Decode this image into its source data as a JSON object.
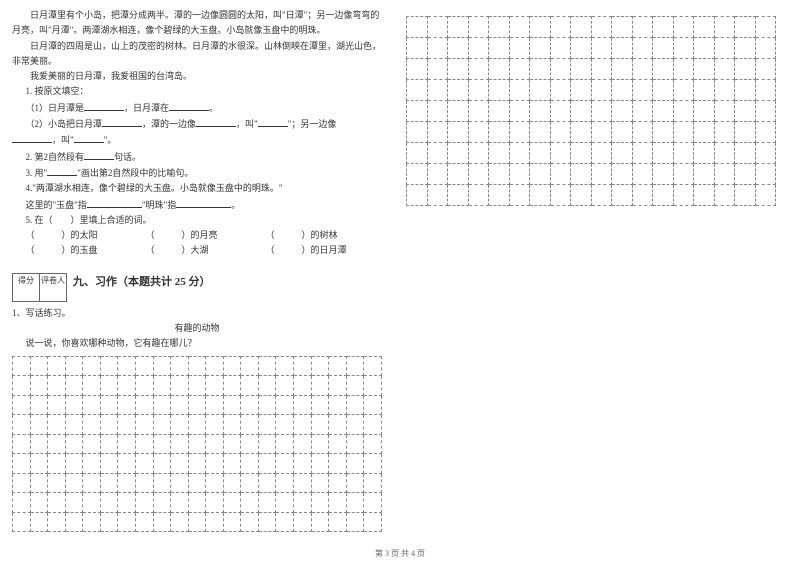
{
  "passage": {
    "p1": "日月潭里有个小岛，把潭分成两半。潭的一边像圆圆的太阳，叫\"日潭\"；另一边像弯弯的月亮，叫\"月潭\"。两潭湖水相连，像个碧绿的大玉盘。小岛就像玉盘中的明珠。",
    "p2": "日月潭的四周是山，山上的茂密的树林。日月潭的水很深。山林倒映在潭里，湖光山色，非常美丽。",
    "p3": "我爱美丽的日月潭，我爱祖国的台湾岛。"
  },
  "q1": {
    "title": "1. 按原文填空：",
    "a": "（1）日月潭是",
    "a2": "，日月潭在",
    "a3": "。",
    "b": "（2）小岛把日月潭",
    "b2": "，潭的一边像",
    "b3": "，叫\"",
    "b4": "\"；另一边像",
    "c1": "，叫\"",
    "c2": "\"。"
  },
  "q2": "2. 第2自然段有",
  "q2b": "句话。",
  "q3": "3. 用\"",
  "q3b": "\"画出第2自然段中的比喻句。",
  "q4a": "4.\"两潭湖水相连，像个碧绿的大玉盘。小岛就像玉盘中的明珠。\"",
  "q4b": "这里的\"玉盘\"指",
  "q4c": "\"明珠\"指",
  "q4d": "。",
  "q5": "5. 在（　　）里填上合适的词。",
  "q5_items": [
    [
      "（　　　）的太阳",
      "（　　　）的月亮",
      "（　　　）的树林"
    ],
    [
      "（　　　）的玉盘",
      "（　　　）大湖",
      "（　　　）的日月潭"
    ]
  ],
  "score_labels": [
    "得分",
    "评卷人"
  ],
  "section9": "九、习作（本题共计 25 分）",
  "writing": {
    "num": "1、写话练习。",
    "title": "有趣的动物",
    "prompt": "说一说，你喜欢哪种动物，它有趣在哪儿？"
  },
  "grid_left": {
    "rows": 9,
    "cols": 21
  },
  "grid_right": {
    "rows": 9,
    "cols": 18
  },
  "footer": "第 3 页  共 4 页"
}
